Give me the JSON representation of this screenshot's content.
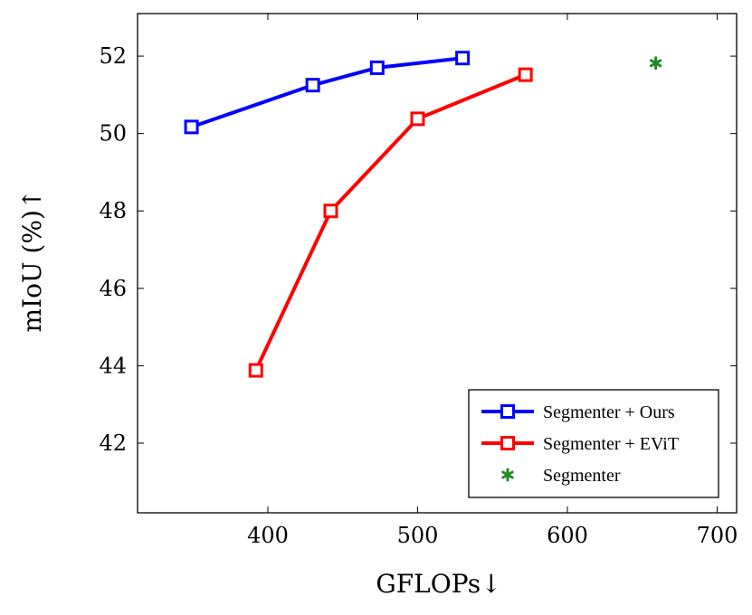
{
  "chart_data": {
    "type": "line",
    "xlabel": "GFLOPs↓",
    "ylabel": "mIoU (%)↑",
    "xlim": [
      313,
      713
    ],
    "ylim": [
      40.2,
      53.1
    ],
    "xticks": [
      400,
      500,
      600,
      700
    ],
    "yticks": [
      42,
      44,
      46,
      48,
      50,
      52
    ],
    "grid": false,
    "legend_position": "bottom-right",
    "series": [
      {
        "name": "Segmenter + Ours",
        "color": "#0000ff",
        "marker": "square",
        "x": [
          349,
          430,
          473,
          530
        ],
        "y": [
          50.17,
          51.25,
          51.7,
          51.95
        ]
      },
      {
        "name": "Segmenter + EViT",
        "color": "#ff0000",
        "marker": "square",
        "x": [
          392,
          442,
          500,
          572
        ],
        "y": [
          43.88,
          48.0,
          50.38,
          51.52
        ]
      },
      {
        "name": "Segmenter",
        "color": "#228b22",
        "marker": "asterisk",
        "x": [
          659
        ],
        "y": [
          51.82
        ]
      }
    ]
  }
}
